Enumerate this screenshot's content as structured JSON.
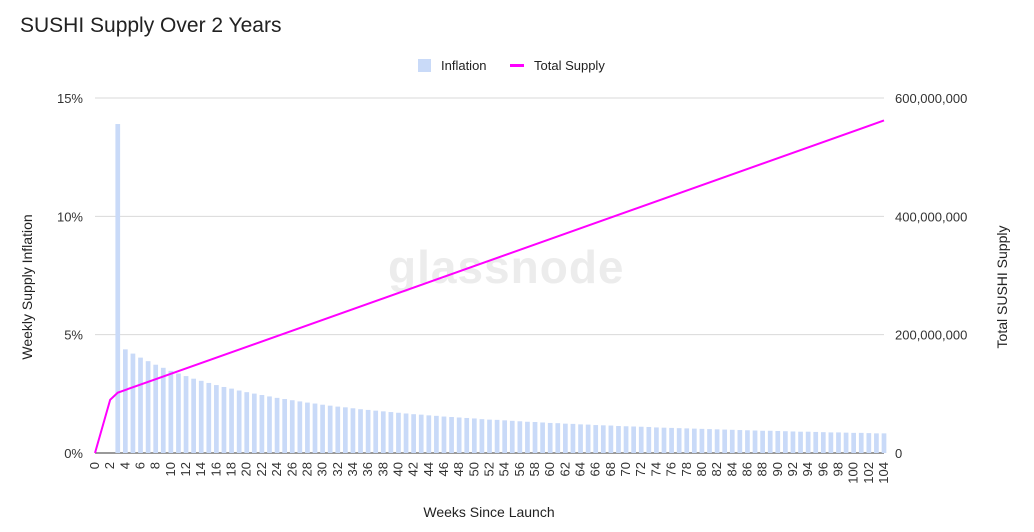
{
  "chart_data": {
    "type": "bar+line",
    "title": "SUSHI Supply Over 2 Years",
    "watermark": "glassnode",
    "xlabel": "Weeks Since Launch",
    "ylabel_left": "Weekly Supply Inflation",
    "ylabel_right": "Total SUSHI Supply",
    "ylim_left": [
      0,
      15
    ],
    "ylim_right": [
      0,
      600000000
    ],
    "yticks_left": [
      "0%",
      "5%",
      "10%",
      "15%"
    ],
    "yticks_right": [
      "0",
      "200,000,000",
      "400,000,000",
      "600,000,000"
    ],
    "x_range": [
      0,
      104
    ],
    "x_tick_step": 2,
    "grid": true,
    "legend_position": "top",
    "series": [
      {
        "name": "Inflation",
        "type": "bar",
        "color": "#c9daf8",
        "x": [
          3,
          4,
          5,
          6,
          7,
          8,
          9,
          10,
          11,
          12,
          13,
          14,
          15,
          16,
          17,
          18,
          19,
          20,
          21,
          22,
          23,
          24,
          25,
          26,
          27,
          28,
          29,
          30,
          31,
          32,
          33,
          34,
          35,
          36,
          37,
          38,
          39,
          40,
          41,
          42,
          43,
          44,
          45,
          46,
          47,
          48,
          49,
          50,
          51,
          52,
          53,
          54,
          55,
          56,
          57,
          58,
          59,
          60,
          61,
          62,
          63,
          64,
          65,
          66,
          67,
          68,
          69,
          70,
          71,
          72,
          73,
          74,
          75,
          76,
          77,
          78,
          79,
          80,
          81,
          82,
          83,
          84,
          85,
          86,
          87,
          88,
          89,
          90,
          91,
          92,
          93,
          94,
          95,
          96,
          97,
          98,
          99,
          100,
          101,
          102,
          103,
          104
        ],
        "values": [
          13.9,
          4.38,
          4.2,
          4.03,
          3.88,
          3.73,
          3.6,
          3.47,
          3.36,
          3.25,
          3.14,
          3.05,
          2.96,
          2.87,
          2.79,
          2.72,
          2.64,
          2.57,
          2.51,
          2.45,
          2.39,
          2.33,
          2.28,
          2.23,
          2.18,
          2.13,
          2.09,
          2.04,
          2.0,
          1.96,
          1.93,
          1.89,
          1.85,
          1.82,
          1.79,
          1.76,
          1.73,
          1.7,
          1.67,
          1.64,
          1.62,
          1.59,
          1.57,
          1.54,
          1.52,
          1.5,
          1.48,
          1.46,
          1.43,
          1.41,
          1.4,
          1.38,
          1.36,
          1.34,
          1.32,
          1.31,
          1.29,
          1.27,
          1.26,
          1.24,
          1.23,
          1.21,
          1.2,
          1.18,
          1.17,
          1.16,
          1.14,
          1.13,
          1.12,
          1.11,
          1.1,
          1.08,
          1.07,
          1.06,
          1.05,
          1.04,
          1.03,
          1.02,
          1.01,
          1.0,
          0.99,
          0.98,
          0.97,
          0.96,
          0.95,
          0.94,
          0.94,
          0.93,
          0.92,
          0.91,
          0.9,
          0.9,
          0.89,
          0.88,
          0.87,
          0.87,
          0.86,
          0.85,
          0.85,
          0.84,
          0.83,
          0.83
        ]
      },
      {
        "name": "Total Supply",
        "type": "line",
        "color": "#ff00ff",
        "x": [
          0,
          2,
          3,
          104
        ],
        "values": [
          0,
          90000000,
          102000000,
          562000000
        ]
      }
    ]
  }
}
